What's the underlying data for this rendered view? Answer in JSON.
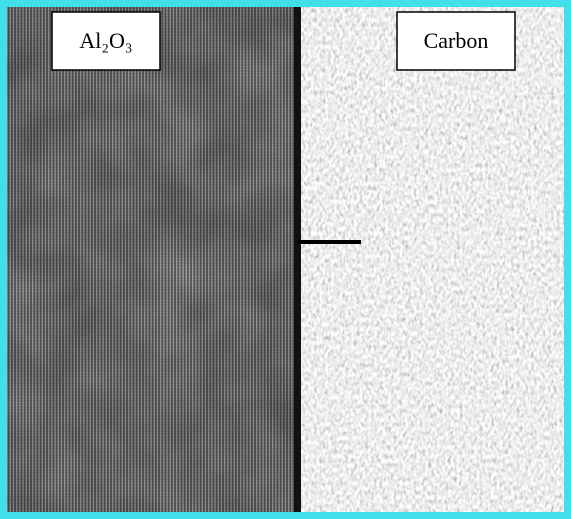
{
  "image": {
    "labels": [
      "Al₂O₃",
      "Carbon"
    ]
  }
}
